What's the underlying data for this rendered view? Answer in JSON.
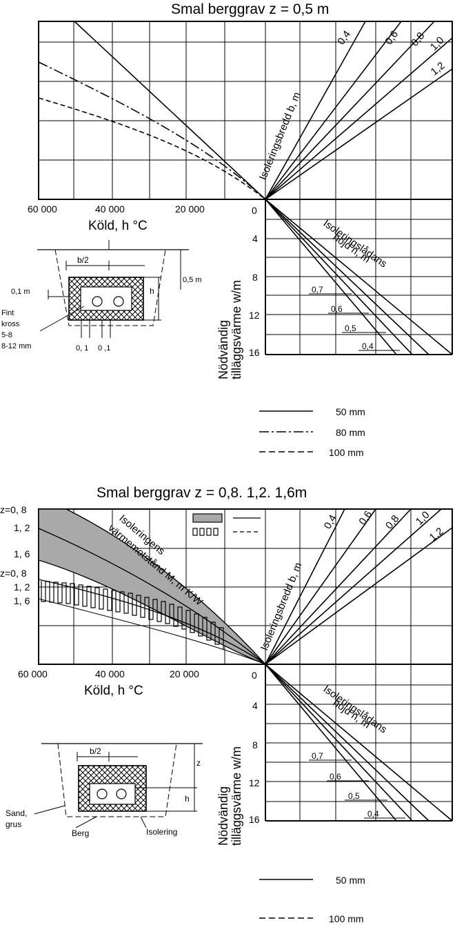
{
  "top": {
    "title": "Smal berggrav   z = 0,5      m",
    "cold_ticks": [
      "60 000",
      "40 000",
      "20 000",
      "0"
    ],
    "cold_label": "Köld,  h °C",
    "heat_ticks": [
      "4",
      "8",
      "12",
      "16"
    ],
    "heat_label_1": "Nödvändig",
    "heat_label_2": "tilläggsvärme w/m",
    "width_label": "Isoleringsbredd  b, m",
    "width_values": [
      "0,4",
      "0,6",
      "0,8",
      "1,0",
      "1,2"
    ],
    "height_label_1": "Isoleringslådans",
    "height_label_2": "höjd  n, m",
    "height_values": [
      "0,7",
      "0,6",
      "0,5",
      "0,4"
    ],
    "sketch": {
      "b2": "b/2",
      "depth": "0,5  m",
      "side": "0,1  m",
      "h": "h",
      "fill_1": "Fint",
      "fill_2": "kross",
      "fill_3": "5-8",
      "fill_4": "8-12 mm",
      "bottom_1": "0, 1",
      "bottom_2": "0 ,1"
    },
    "legend": [
      "50 mm",
      "80 mm",
      "100 mm"
    ]
  },
  "bottom": {
    "title": "Smal berggrav  z = 0,8. 1,2. 1,6m",
    "z_labels_upper": [
      "z=0, 8",
      "1, 2",
      "1, 6"
    ],
    "z_labels_lower": [
      "z=0, 8",
      "1, 2",
      "1, 6"
    ],
    "cold_ticks": [
      "60 000",
      "40 000",
      "20 000",
      "0"
    ],
    "cold_label": "Köld,  h °C",
    "resistance_label_1": "Isoleringens",
    "resistance_label_2": "värmemotstånd M, m K/W",
    "heat_ticks": [
      "4",
      "8",
      "12",
      "16"
    ],
    "heat_label_1": "Nödvändig",
    "heat_label_2": "tilläggsvärme w/m",
    "width_label": "Isoleringsbredd  b, m",
    "width_values": [
      "0,4",
      "0,6",
      "0,8",
      "1,0",
      "1,2"
    ],
    "height_label_1": "Isoleringslådans",
    "height_label_2": "höjd  n, m",
    "height_values": [
      "0,7",
      "0,6",
      "0,5",
      "0,4"
    ],
    "sketch": {
      "b2": "b/2",
      "z": "z",
      "h": "h",
      "sand_1": "Sand,",
      "sand_2": "grus",
      "rock": "Berg",
      "insulation": "Isolering"
    },
    "legend": [
      "50 mm",
      "100 mm"
    ]
  }
}
